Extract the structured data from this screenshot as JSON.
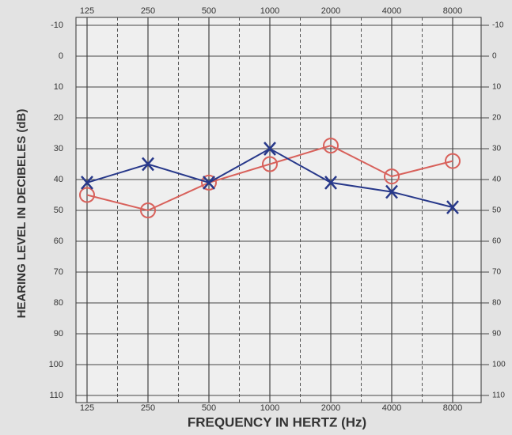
{
  "chart_data": {
    "type": "line",
    "y_label": "HEARING LEVEL IN DECIBELES (dB)",
    "x_label": "FREQUENCY IN HERTZ (Hz)",
    "categories": [
      "125",
      "250",
      "500",
      "1000",
      "2000",
      "4000",
      "8000"
    ],
    "series": [
      {
        "color": "#d8615b",
        "marker": "circle",
        "values": [
          45,
          50,
          41,
          35,
          29,
          39,
          34
        ]
      },
      {
        "color": "#27388a",
        "marker": "x",
        "values": [
          41,
          35,
          41,
          30,
          41,
          44,
          49
        ]
      }
    ],
    "ylim": [
      -10,
      110
    ],
    "yticks": [
      -10,
      0,
      10,
      20,
      30,
      40,
      50,
      60,
      70,
      80,
      90,
      100,
      110
    ],
    "y_inverted": true,
    "y2lim": [
      -10,
      110
    ],
    "y2ticks": [
      -10,
      0,
      10,
      20,
      30,
      40,
      50,
      60,
      70,
      80,
      90,
      100,
      110
    ],
    "grid": true
  }
}
